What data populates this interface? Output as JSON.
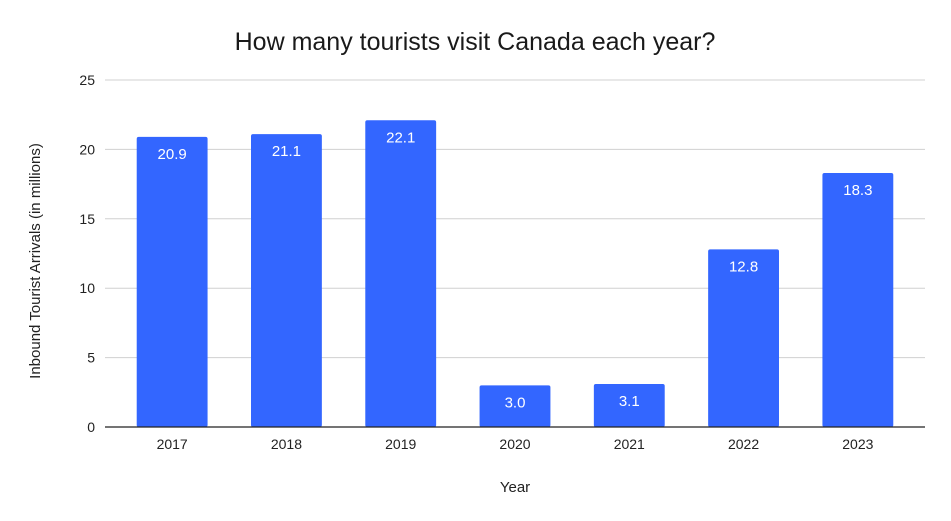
{
  "chart_data": {
    "type": "bar",
    "title": "How many tourists visit Canada each year?",
    "xlabel": "Year",
    "ylabel": "Inbound Tourist Arrivals (in millions)",
    "categories": [
      "2017",
      "2018",
      "2019",
      "2020",
      "2021",
      "2022",
      "2023"
    ],
    "values": [
      20.9,
      21.1,
      22.1,
      3.0,
      3.1,
      12.8,
      18.3
    ],
    "value_labels": [
      "20.9",
      "21.1",
      "22.1",
      "3.0",
      "3.1",
      "12.8",
      "18.3"
    ],
    "ylim": [
      0,
      25
    ],
    "yticks": [
      0,
      5,
      10,
      15,
      20,
      25
    ],
    "grid": true,
    "legend": "none",
    "bar_color": "#3366ff",
    "label_color": "#ffffff"
  }
}
